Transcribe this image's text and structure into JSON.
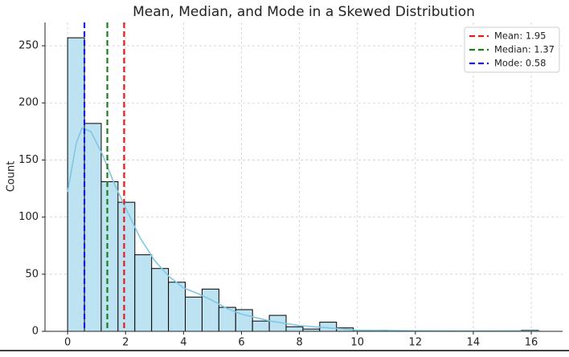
{
  "chart_data": {
    "type": "histogram",
    "title": "Mean, Median, and Mode in a Skewed Distribution",
    "y_label": "Count",
    "bins": [
      0,
      0.58,
      1.16,
      1.74,
      2.32,
      2.9,
      3.48,
      4.06,
      4.64,
      5.22,
      5.8,
      6.38,
      6.96,
      7.54,
      8.12,
      8.7,
      9.28,
      9.86,
      10.44,
      11.02,
      11.6,
      12.18,
      12.76,
      13.34,
      13.92,
      14.5,
      15.08,
      15.66,
      16.24
    ],
    "values": [
      257,
      182,
      131,
      113,
      67,
      55,
      43,
      30,
      37,
      21,
      19,
      9,
      14,
      4,
      2,
      8,
      3,
      1,
      1,
      0,
      0,
      0,
      0,
      0,
      0,
      0,
      0,
      1
    ],
    "color": "#bde3f2",
    "kde": {
      "color": "#7ec8e3",
      "x": [
        0,
        0.3,
        0.5,
        0.8,
        1.2,
        1.6,
        2,
        2.5,
        3,
        3.5,
        4,
        4.5,
        5,
        5.5,
        6,
        7,
        8,
        9,
        10,
        12,
        14,
        16,
        16.3
      ],
      "y": [
        122,
        165,
        178,
        175,
        155,
        130,
        108,
        82,
        62,
        48,
        38,
        33,
        27,
        20,
        15,
        9,
        5,
        3,
        1,
        0.5,
        0.3,
        0.5,
        0.4
      ]
    },
    "reference_lines": [
      {
        "name": "Mean: 1.95",
        "value": 1.95,
        "color": "#e31a1c"
      },
      {
        "name": "Median: 1.37",
        "value": 1.37,
        "color": "#1a7f1a"
      },
      {
        "name": "Mode: 0.58",
        "value": 0.58,
        "color": "#1a1adb"
      }
    ],
    "xlim": [
      -0.78,
      17.08
    ],
    "ylim": [
      0,
      270.4
    ],
    "xticks": [
      0,
      2,
      4,
      6,
      8,
      10,
      12,
      14,
      16
    ],
    "yticks": [
      0,
      50,
      100,
      150,
      200,
      250
    ],
    "grid": true,
    "legend": "upper right"
  }
}
